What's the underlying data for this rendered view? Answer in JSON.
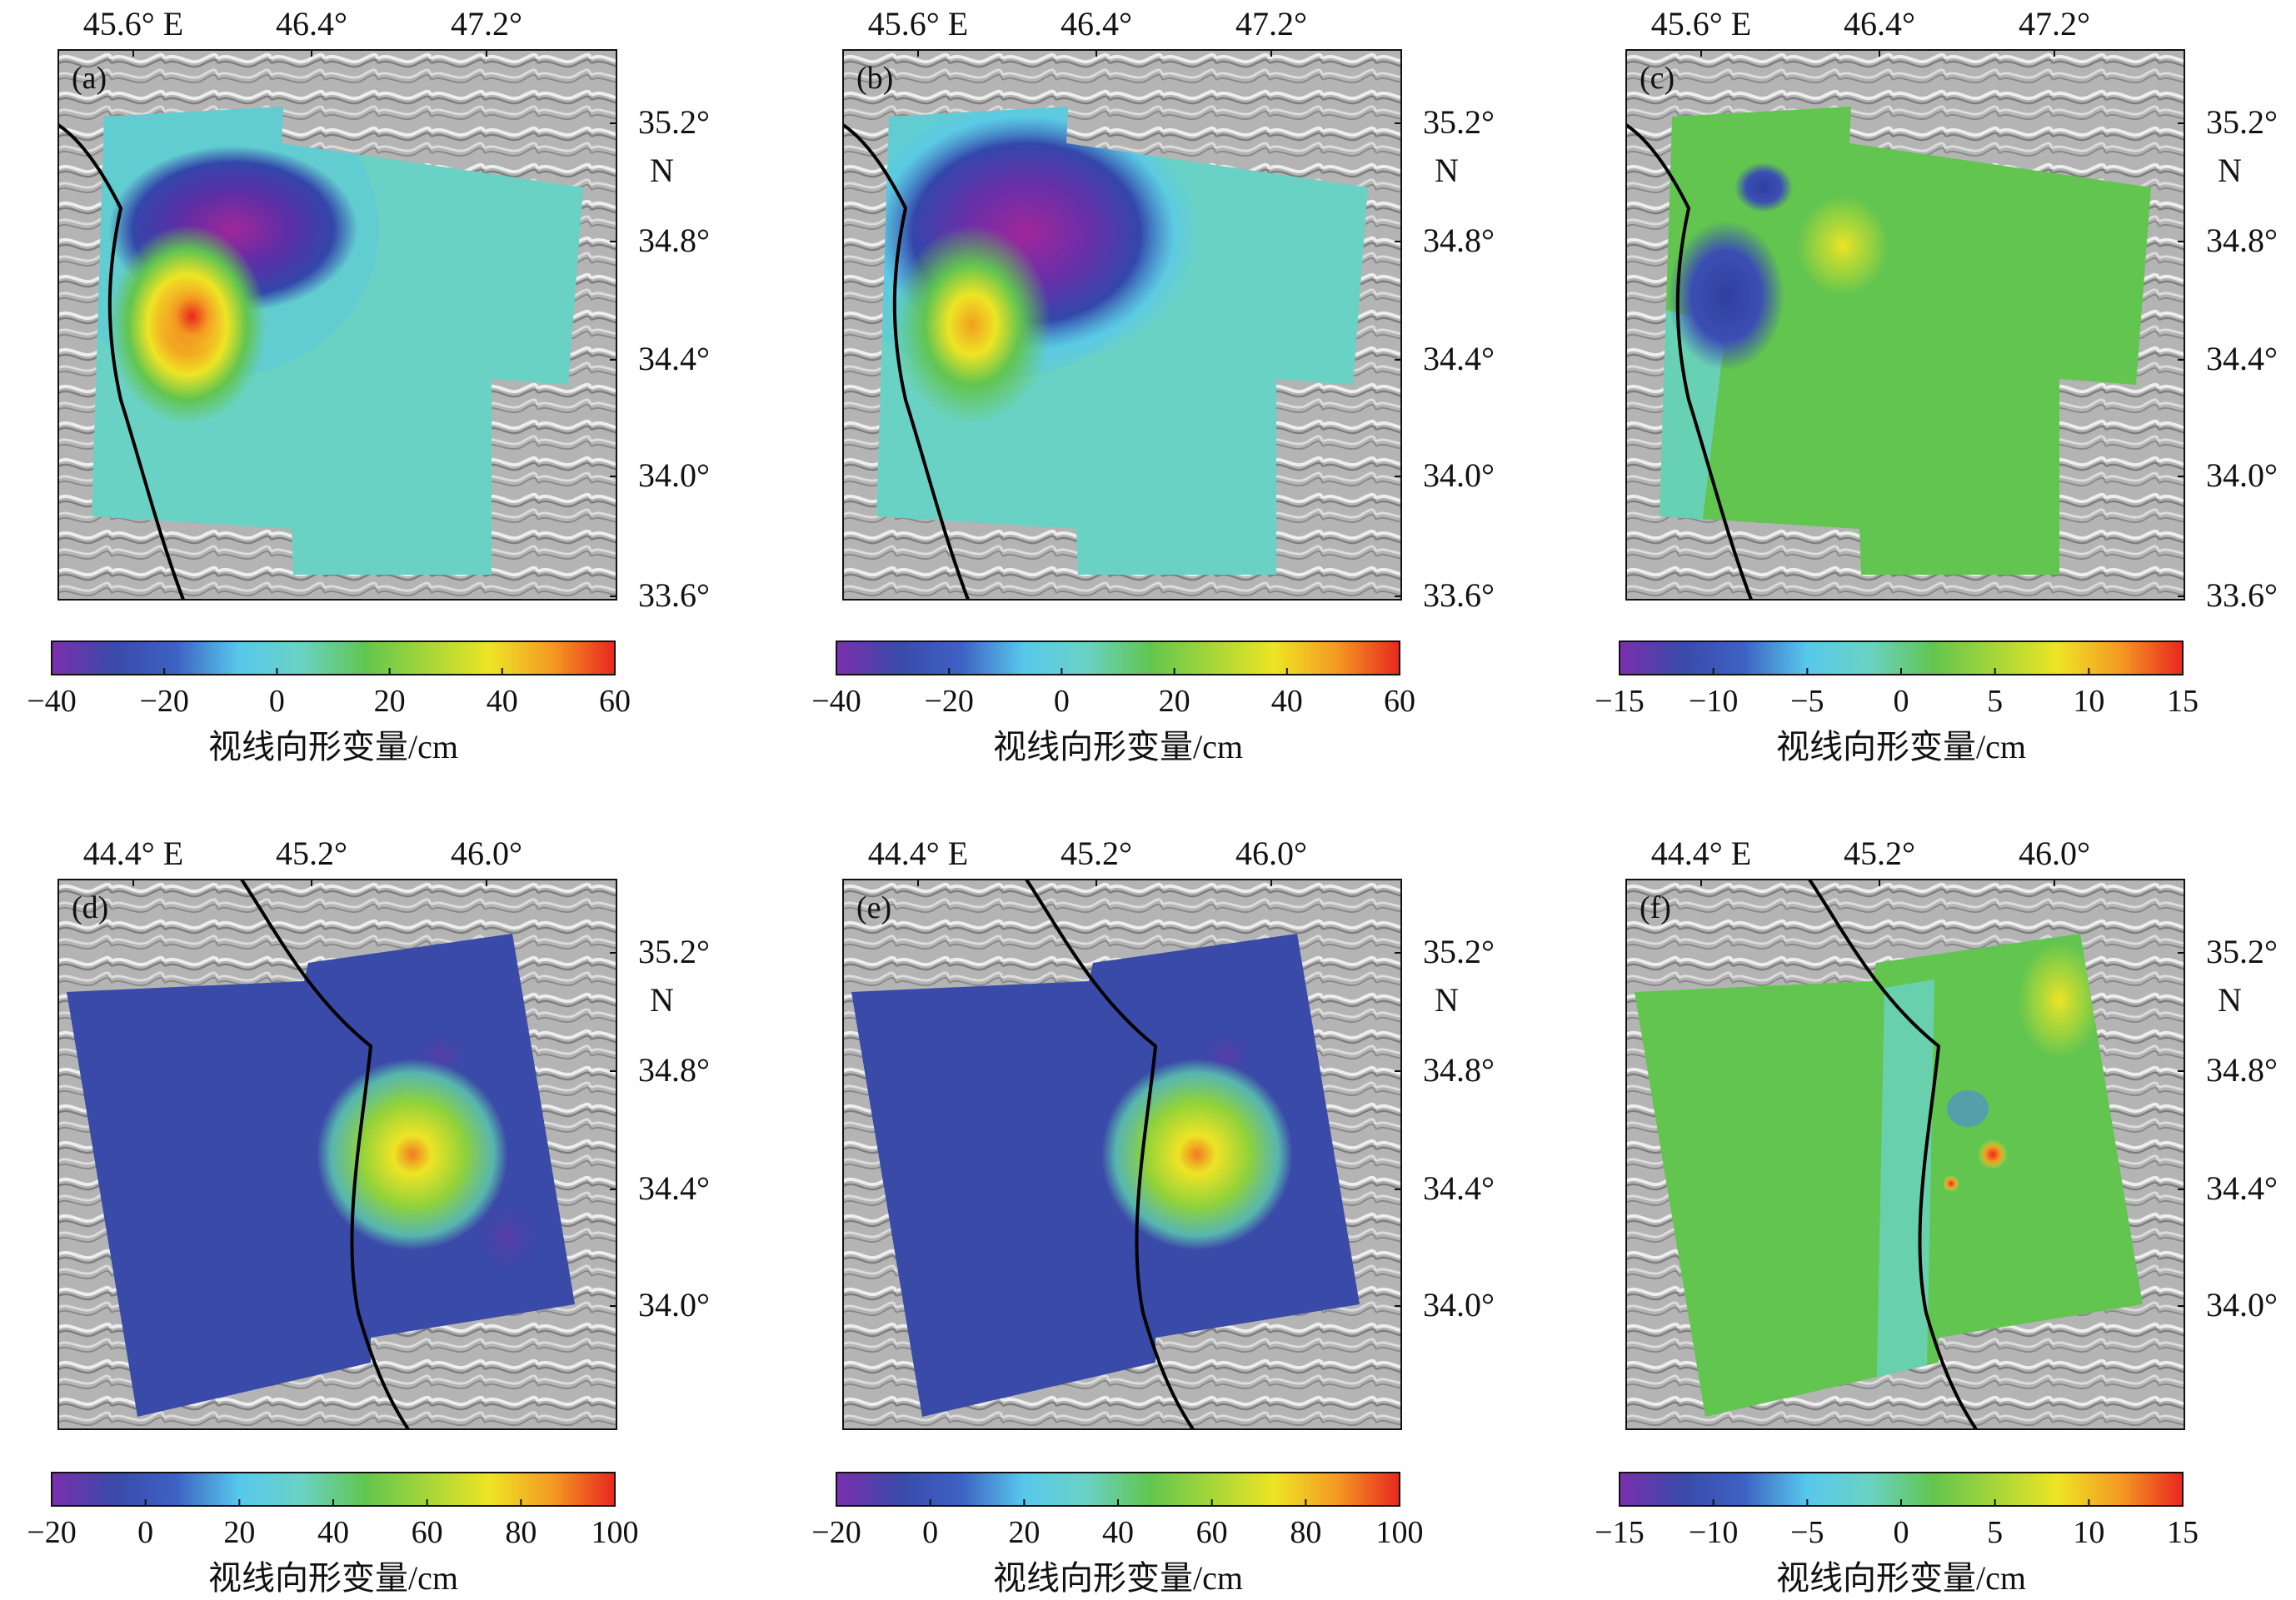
{
  "panels": [
    {
      "id": "a",
      "label": "(a)",
      "top_ticks": [
        "45.6° E",
        "46.4°",
        "47.2°"
      ],
      "right_ticks": [
        "35.2°",
        "N",
        "34.8°",
        "34.4°",
        "34.0°",
        "33.6°"
      ],
      "colorbar": {
        "ticks": [
          "−40",
          "−20",
          "0",
          "20",
          "40",
          "60"
        ],
        "min": -40,
        "max": 60,
        "label": "视线向形变量/cm"
      }
    },
    {
      "id": "b",
      "label": "(b)",
      "top_ticks": [
        "45.6° E",
        "46.4°",
        "47.2°"
      ],
      "right_ticks": [
        "35.2°",
        "N",
        "34.8°",
        "34.4°",
        "34.0°",
        "33.6°"
      ],
      "colorbar": {
        "ticks": [
          "−40",
          "−20",
          "0",
          "20",
          "40",
          "60"
        ],
        "min": -40,
        "max": 60,
        "label": "视线向形变量/cm"
      }
    },
    {
      "id": "c",
      "label": "(c)",
      "top_ticks": [
        "45.6° E",
        "46.4°",
        "47.2°"
      ],
      "right_ticks": [
        "35.2°",
        "N",
        "34.8°",
        "34.4°",
        "34.0°",
        "33.6°"
      ],
      "colorbar": {
        "ticks": [
          "−15",
          "−10",
          "−5",
          "0",
          "5",
          "10",
          "15"
        ],
        "min": -15,
        "max": 15,
        "label": "视线向形变量/cm"
      }
    },
    {
      "id": "d",
      "label": "(d)",
      "top_ticks": [
        "44.4° E",
        "45.2°",
        "46.0°"
      ],
      "right_ticks": [
        "35.2°",
        "N",
        "34.8°",
        "34.4°",
        "34.0°"
      ],
      "colorbar": {
        "ticks": [
          "−20",
          "0",
          "20",
          "40",
          "60",
          "80",
          "100"
        ],
        "min": -20,
        "max": 100,
        "label": "视线向形变量/cm"
      }
    },
    {
      "id": "e",
      "label": "(e)",
      "top_ticks": [
        "44.4° E",
        "45.2°",
        "46.0°"
      ],
      "right_ticks": [
        "35.2°",
        "N",
        "34.8°",
        "34.4°",
        "34.0°"
      ],
      "colorbar": {
        "ticks": [
          "−20",
          "0",
          "20",
          "40",
          "60",
          "80",
          "100"
        ],
        "min": -20,
        "max": 100,
        "label": "视线向形变量/cm"
      }
    },
    {
      "id": "f",
      "label": "(f)",
      "top_ticks": [
        "44.4° E",
        "45.2°",
        "46.0°"
      ],
      "right_ticks": [
        "35.2°",
        "N",
        "34.8°",
        "34.4°",
        "34.0°"
      ],
      "colorbar": {
        "ticks": [
          "−15",
          "−10",
          "−5",
          "0",
          "5",
          "10",
          "15"
        ],
        "min": -15,
        "max": 15,
        "label": "视线向形变量/cm"
      }
    }
  ],
  "colors": {
    "colormap": [
      "#7b2fae",
      "#3a4aa8",
      "#3e62c4",
      "#58c8ec",
      "#6ad2c4",
      "#62c550",
      "#a6d63a",
      "#eee425",
      "#f49a22",
      "#e8271e"
    ],
    "relief": "#b4b4b4",
    "fault_line": "#000000"
  }
}
